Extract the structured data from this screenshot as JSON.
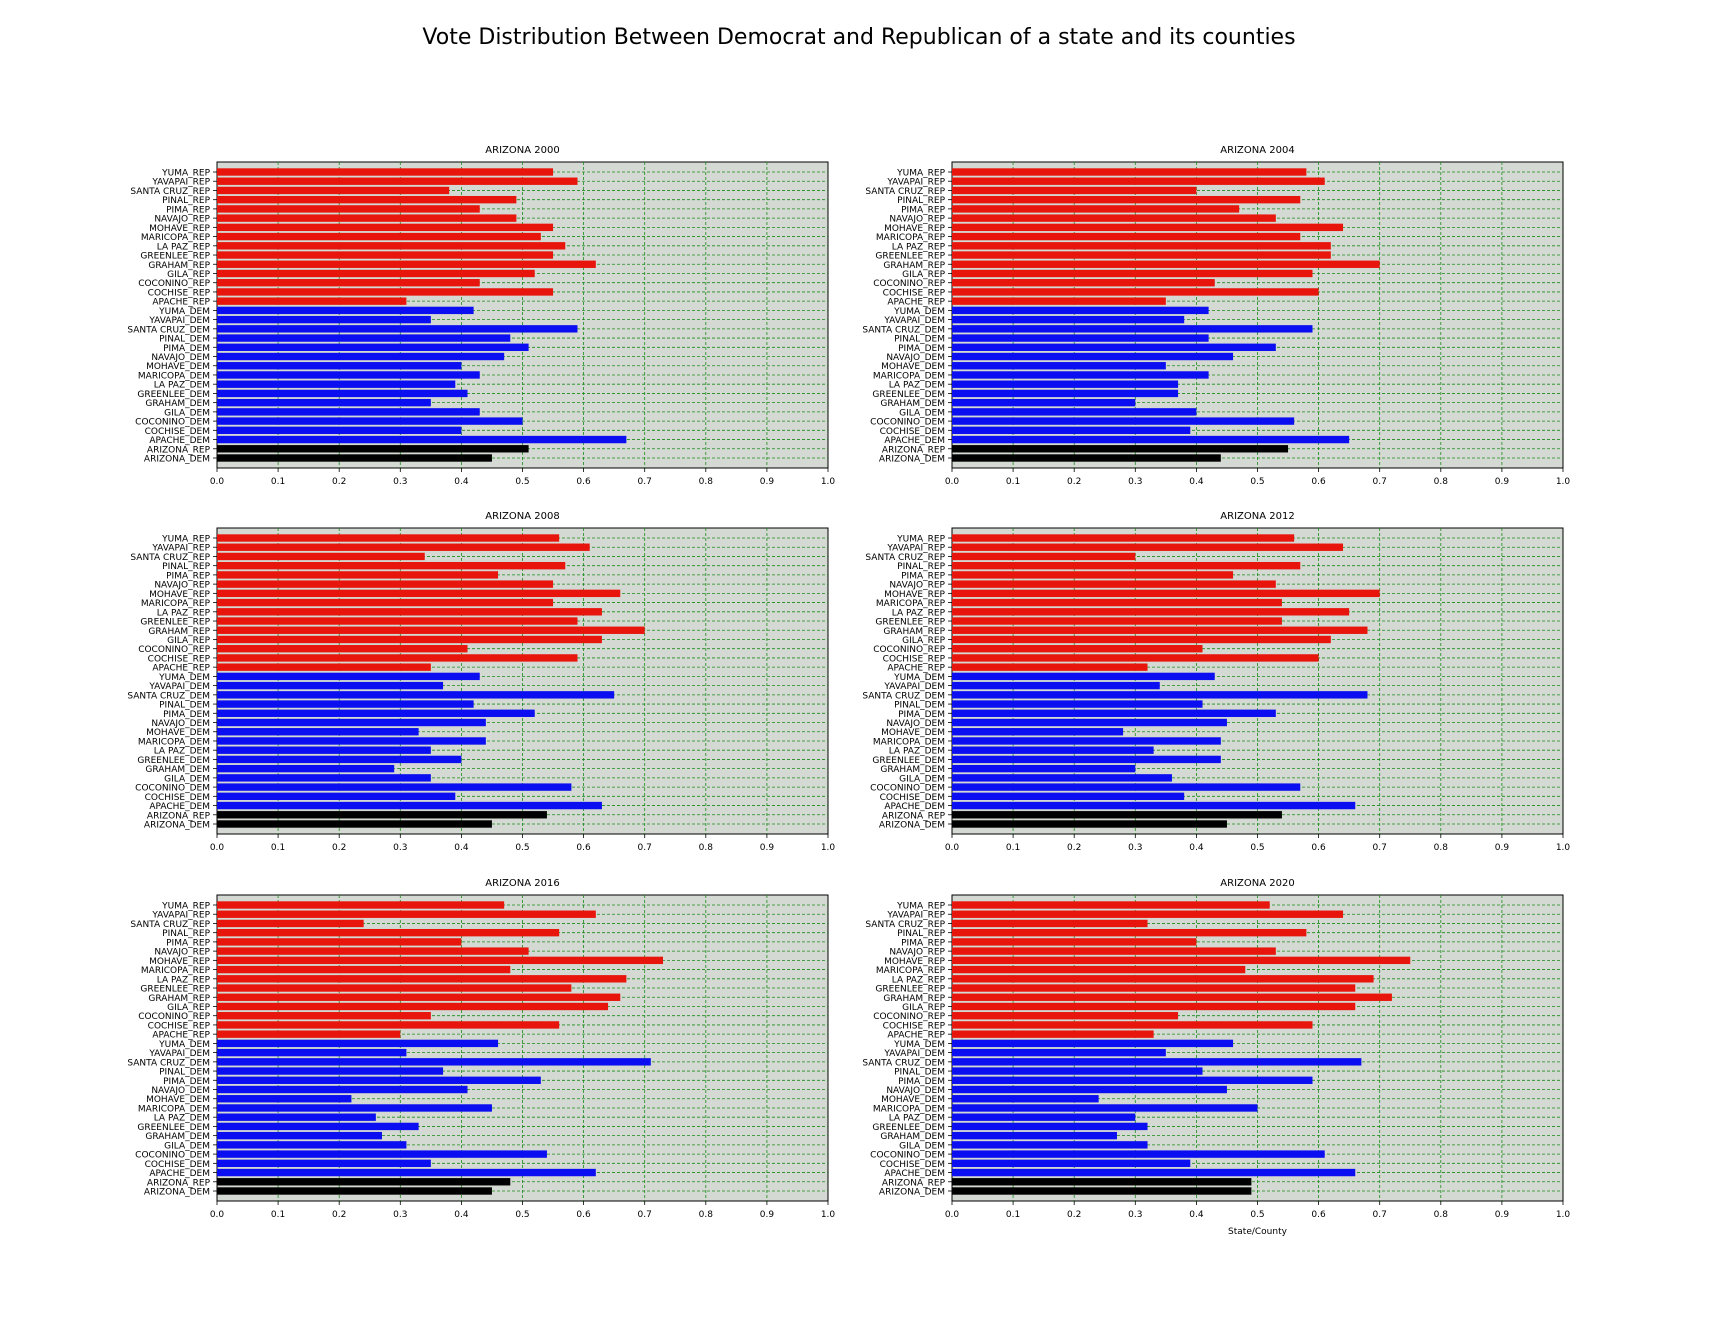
{
  "figure_title": "Vote Distribution Between Democrat and Republican of a state and its counties",
  "x_axis_label": "State/County",
  "colors": {
    "rep": "#e8150c",
    "dem": "#0a0ef0",
    "state": "#000000",
    "background": "#d5d9d3",
    "grid": "#1a8a1a"
  },
  "chart_data": [
    {
      "type": "bar",
      "orientation": "horizontal",
      "title": "ARIZONA 2000",
      "categories": [
        "YUMA_REP",
        "YAVAPAI_REP",
        "SANTA CRUZ_REP",
        "PINAL_REP",
        "PIMA_REP",
        "NAVAJO_REP",
        "MOHAVE_REP",
        "MARICOPA_REP",
        "LA PAZ_REP",
        "GREENLEE_REP",
        "GRAHAM_REP",
        "GILA_REP",
        "COCONINO_REP",
        "COCHISE_REP",
        "APACHE_REP",
        "YUMA_DEM",
        "YAVAPAI_DEM",
        "SANTA CRUZ_DEM",
        "PINAL_DEM",
        "PIMA_DEM",
        "NAVAJO_DEM",
        "MOHAVE_DEM",
        "MARICOPA_DEM",
        "LA PAZ_DEM",
        "GREENLEE_DEM",
        "GRAHAM_DEM",
        "GILA_DEM",
        "COCONINO_DEM",
        "COCHISE_DEM",
        "APACHE_DEM",
        "ARIZONA_REP",
        "ARIZONA_DEM"
      ],
      "values": [
        0.55,
        0.59,
        0.38,
        0.49,
        0.43,
        0.49,
        0.55,
        0.53,
        0.57,
        0.55,
        0.62,
        0.52,
        0.43,
        0.55,
        0.31,
        0.42,
        0.35,
        0.59,
        0.48,
        0.51,
        0.47,
        0.4,
        0.43,
        0.39,
        0.41,
        0.35,
        0.43,
        0.5,
        0.4,
        0.67,
        0.51,
        0.45
      ],
      "xlim": [
        0,
        1.0
      ],
      "xticks": [
        "0.0",
        "0.1",
        "0.2",
        "0.3",
        "0.4",
        "0.5",
        "0.6",
        "0.7",
        "0.8",
        "0.9",
        "1.0"
      ],
      "xlabel": ""
    },
    {
      "type": "bar",
      "orientation": "horizontal",
      "title": "ARIZONA 2004",
      "categories": [
        "YUMA_REP",
        "YAVAPAI_REP",
        "SANTA CRUZ_REP",
        "PINAL_REP",
        "PIMA_REP",
        "NAVAJO_REP",
        "MOHAVE_REP",
        "MARICOPA_REP",
        "LA PAZ_REP",
        "GREENLEE_REP",
        "GRAHAM_REP",
        "GILA_REP",
        "COCONINO_REP",
        "COCHISE_REP",
        "APACHE_REP",
        "YUMA_DEM",
        "YAVAPAI_DEM",
        "SANTA CRUZ_DEM",
        "PINAL_DEM",
        "PIMA_DEM",
        "NAVAJO_DEM",
        "MOHAVE_DEM",
        "MARICOPA_DEM",
        "LA PAZ_DEM",
        "GREENLEE_DEM",
        "GRAHAM_DEM",
        "GILA_DEM",
        "COCONINO_DEM",
        "COCHISE_DEM",
        "APACHE_DEM",
        "ARIZONA_REP",
        "ARIZONA_DEM"
      ],
      "values": [
        0.58,
        0.61,
        0.4,
        0.57,
        0.47,
        0.53,
        0.64,
        0.57,
        0.62,
        0.62,
        0.7,
        0.59,
        0.43,
        0.6,
        0.35,
        0.42,
        0.38,
        0.59,
        0.42,
        0.53,
        0.46,
        0.35,
        0.42,
        0.37,
        0.37,
        0.3,
        0.4,
        0.56,
        0.39,
        0.65,
        0.55,
        0.44
      ],
      "xlim": [
        0,
        1.0
      ],
      "xticks": [
        "0.0",
        "0.1",
        "0.2",
        "0.3",
        "0.4",
        "0.5",
        "0.6",
        "0.7",
        "0.8",
        "0.9",
        "1.0"
      ],
      "xlabel": ""
    },
    {
      "type": "bar",
      "orientation": "horizontal",
      "title": "ARIZONA 2008",
      "categories": [
        "YUMA_REP",
        "YAVAPAI_REP",
        "SANTA CRUZ_REP",
        "PINAL_REP",
        "PIMA_REP",
        "NAVAJO_REP",
        "MOHAVE_REP",
        "MARICOPA_REP",
        "LA PAZ_REP",
        "GREENLEE_REP",
        "GRAHAM_REP",
        "GILA_REP",
        "COCONINO_REP",
        "COCHISE_REP",
        "APACHE_REP",
        "YUMA_DEM",
        "YAVAPAI_DEM",
        "SANTA CRUZ_DEM",
        "PINAL_DEM",
        "PIMA_DEM",
        "NAVAJO_DEM",
        "MOHAVE_DEM",
        "MARICOPA_DEM",
        "LA PAZ_DEM",
        "GREENLEE_DEM",
        "GRAHAM_DEM",
        "GILA_DEM",
        "COCONINO_DEM",
        "COCHISE_DEM",
        "APACHE_DEM",
        "ARIZONA_REP",
        "ARIZONA_DEM"
      ],
      "values": [
        0.56,
        0.61,
        0.34,
        0.57,
        0.46,
        0.55,
        0.66,
        0.55,
        0.63,
        0.59,
        0.7,
        0.63,
        0.41,
        0.59,
        0.35,
        0.43,
        0.37,
        0.65,
        0.42,
        0.52,
        0.44,
        0.33,
        0.44,
        0.35,
        0.4,
        0.29,
        0.35,
        0.58,
        0.39,
        0.63,
        0.54,
        0.45
      ],
      "xlim": [
        0,
        1.0
      ],
      "xticks": [
        "0.0",
        "0.1",
        "0.2",
        "0.3",
        "0.4",
        "0.5",
        "0.6",
        "0.7",
        "0.8",
        "0.9",
        "1.0"
      ],
      "xlabel": ""
    },
    {
      "type": "bar",
      "orientation": "horizontal",
      "title": "ARIZONA 2012",
      "categories": [
        "YUMA_REP",
        "YAVAPAI_REP",
        "SANTA CRUZ_REP",
        "PINAL_REP",
        "PIMA_REP",
        "NAVAJO_REP",
        "MOHAVE_REP",
        "MARICOPA_REP",
        "LA PAZ_REP",
        "GREENLEE_REP",
        "GRAHAM_REP",
        "GILA_REP",
        "COCONINO_REP",
        "COCHISE_REP",
        "APACHE_REP",
        "YUMA_DEM",
        "YAVAPAI_DEM",
        "SANTA CRUZ_DEM",
        "PINAL_DEM",
        "PIMA_DEM",
        "NAVAJO_DEM",
        "MOHAVE_DEM",
        "MARICOPA_DEM",
        "LA PAZ_DEM",
        "GREENLEE_DEM",
        "GRAHAM_DEM",
        "GILA_DEM",
        "COCONINO_DEM",
        "COCHISE_DEM",
        "APACHE_DEM",
        "ARIZONA_REP",
        "ARIZONA_DEM"
      ],
      "values": [
        0.56,
        0.64,
        0.3,
        0.57,
        0.46,
        0.53,
        0.7,
        0.54,
        0.65,
        0.54,
        0.68,
        0.62,
        0.41,
        0.6,
        0.32,
        0.43,
        0.34,
        0.68,
        0.41,
        0.53,
        0.45,
        0.28,
        0.44,
        0.33,
        0.44,
        0.3,
        0.36,
        0.57,
        0.38,
        0.66,
        0.54,
        0.45
      ],
      "xlim": [
        0,
        1.0
      ],
      "xticks": [
        "0.0",
        "0.1",
        "0.2",
        "0.3",
        "0.4",
        "0.5",
        "0.6",
        "0.7",
        "0.8",
        "0.9",
        "1.0"
      ],
      "xlabel": ""
    },
    {
      "type": "bar",
      "orientation": "horizontal",
      "title": "ARIZONA 2016",
      "categories": [
        "YUMA_REP",
        "YAVAPAI_REP",
        "SANTA CRUZ_REP",
        "PINAL_REP",
        "PIMA_REP",
        "NAVAJO_REP",
        "MOHAVE_REP",
        "MARICOPA_REP",
        "LA PAZ_REP",
        "GREENLEE_REP",
        "GRAHAM_REP",
        "GILA_REP",
        "COCONINO_REP",
        "COCHISE_REP",
        "APACHE_REP",
        "YUMA_DEM",
        "YAVAPAI_DEM",
        "SANTA CRUZ_DEM",
        "PINAL_DEM",
        "PIMA_DEM",
        "NAVAJO_DEM",
        "MOHAVE_DEM",
        "MARICOPA_DEM",
        "LA PAZ_DEM",
        "GREENLEE_DEM",
        "GRAHAM_DEM",
        "GILA_DEM",
        "COCONINO_DEM",
        "COCHISE_DEM",
        "APACHE_DEM",
        "ARIZONA_REP",
        "ARIZONA_DEM"
      ],
      "values": [
        0.47,
        0.62,
        0.24,
        0.56,
        0.4,
        0.51,
        0.73,
        0.48,
        0.67,
        0.58,
        0.66,
        0.64,
        0.35,
        0.56,
        0.3,
        0.46,
        0.31,
        0.71,
        0.37,
        0.53,
        0.41,
        0.22,
        0.45,
        0.26,
        0.33,
        0.27,
        0.31,
        0.54,
        0.35,
        0.62,
        0.48,
        0.45
      ],
      "xlim": [
        0,
        1.0
      ],
      "xticks": [
        "0.0",
        "0.1",
        "0.2",
        "0.3",
        "0.4",
        "0.5",
        "0.6",
        "0.7",
        "0.8",
        "0.9",
        "1.0"
      ],
      "xlabel": ""
    },
    {
      "type": "bar",
      "orientation": "horizontal",
      "title": "ARIZONA 2020",
      "categories": [
        "YUMA_REP",
        "YAVAPAI_REP",
        "SANTA CRUZ_REP",
        "PINAL_REP",
        "PIMA_REP",
        "NAVAJO_REP",
        "MOHAVE_REP",
        "MARICOPA_REP",
        "LA PAZ_REP",
        "GREENLEE_REP",
        "GRAHAM_REP",
        "GILA_REP",
        "COCONINO_REP",
        "COCHISE_REP",
        "APACHE_REP",
        "YUMA_DEM",
        "YAVAPAI_DEM",
        "SANTA CRUZ_DEM",
        "PINAL_DEM",
        "PIMA_DEM",
        "NAVAJO_DEM",
        "MOHAVE_DEM",
        "MARICOPA_DEM",
        "LA PAZ_DEM",
        "GREENLEE_DEM",
        "GRAHAM_DEM",
        "GILA_DEM",
        "COCONINO_DEM",
        "COCHISE_DEM",
        "APACHE_DEM",
        "ARIZONA_REP",
        "ARIZONA_DEM"
      ],
      "values": [
        0.52,
        0.64,
        0.32,
        0.58,
        0.4,
        0.53,
        0.75,
        0.48,
        0.69,
        0.66,
        0.72,
        0.66,
        0.37,
        0.59,
        0.33,
        0.46,
        0.35,
        0.67,
        0.41,
        0.59,
        0.45,
        0.24,
        0.5,
        0.3,
        0.32,
        0.27,
        0.32,
        0.61,
        0.39,
        0.66,
        0.49,
        0.49
      ],
      "xlim": [
        0,
        1.0
      ],
      "xticks": [
        "0.0",
        "0.1",
        "0.2",
        "0.3",
        "0.4",
        "0.5",
        "0.6",
        "0.7",
        "0.8",
        "0.9",
        "1.0"
      ],
      "xlabel": "State/County"
    }
  ]
}
